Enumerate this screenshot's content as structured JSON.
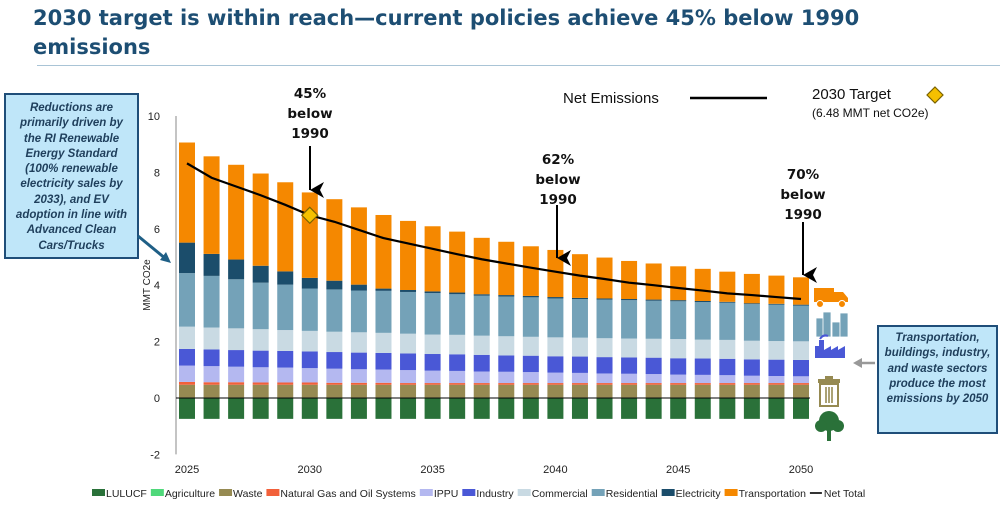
{
  "title": "2030 target is within reach—current policies achieve 45% below 1990 emissions",
  "left_callout": "Reductions are primarily driven by the RI Renewable Energy Standard (100% renewable electricity sales by 2033), and EV adoption in line with Advanced Clean Cars/Trucks",
  "right_callout": "Transportation, buildings, industry, and waste  sectors produce the most emissions by 2050",
  "annotations": [
    {
      "year": 2030,
      "pct": "45%",
      "text1": "below",
      "text2": "1990"
    },
    {
      "year": 2040,
      "pct": "62%",
      "text1": "below",
      "text2": "1990"
    },
    {
      "year": 2050,
      "pct": "70%",
      "text1": "below",
      "text2": "1990"
    }
  ],
  "top_legend": {
    "net_label": "Net Emissions",
    "target_label": "2030 Target",
    "target_sub": "(6.48 MMT net CO2e)"
  },
  "sector_icons": [
    "truck-icon",
    "buildings-icon",
    "factory-icon",
    "trash-can-icon",
    "tree-icon"
  ],
  "chart_data": {
    "type": "bar",
    "stacked": true,
    "ylabel": "MMT CO2e",
    "ylim": [
      -2,
      10
    ],
    "yticks": [
      -2,
      0,
      2,
      4,
      6,
      8,
      10
    ],
    "xtick_labels": [
      "2025",
      "2030",
      "2035",
      "2040",
      "2045",
      "2050"
    ],
    "legend_position": "bottom",
    "grid": false,
    "x": [
      2025,
      2026,
      2027,
      2028,
      2029,
      2030,
      2031,
      2032,
      2033,
      2034,
      2035,
      2036,
      2037,
      2038,
      2039,
      2040,
      2041,
      2042,
      2043,
      2044,
      2045,
      2046,
      2047,
      2048,
      2049,
      2050
    ],
    "series": [
      {
        "name": "LULUCF",
        "color": "#2a7139",
        "values": [
          -0.74,
          -0.74,
          -0.74,
          -0.74,
          -0.74,
          -0.74,
          -0.74,
          -0.74,
          -0.74,
          -0.74,
          -0.74,
          -0.74,
          -0.74,
          -0.74,
          -0.74,
          -0.74,
          -0.74,
          -0.74,
          -0.74,
          -0.74,
          -0.74,
          -0.74,
          -0.74,
          -0.74,
          -0.74,
          -0.74
        ]
      },
      {
        "name": "Agriculture",
        "color": "#4fd87a",
        "values": [
          0.02,
          0.02,
          0.02,
          0.02,
          0.02,
          0.02,
          0.02,
          0.02,
          0.02,
          0.02,
          0.02,
          0.02,
          0.02,
          0.02,
          0.02,
          0.02,
          0.02,
          0.02,
          0.02,
          0.02,
          0.02,
          0.02,
          0.02,
          0.02,
          0.02,
          0.02
        ]
      },
      {
        "name": "Waste",
        "color": "#968a52",
        "values": [
          0.45,
          0.45,
          0.45,
          0.45,
          0.45,
          0.45,
          0.45,
          0.45,
          0.45,
          0.45,
          0.45,
          0.45,
          0.45,
          0.45,
          0.45,
          0.45,
          0.45,
          0.45,
          0.45,
          0.45,
          0.45,
          0.45,
          0.45,
          0.45,
          0.45,
          0.45
        ]
      },
      {
        "name": "Natural Gas and Oil Systems",
        "color": "#f2603a",
        "values": [
          0.1,
          0.09,
          0.09,
          0.08,
          0.08,
          0.08,
          0.07,
          0.07,
          0.07,
          0.06,
          0.06,
          0.06,
          0.06,
          0.06,
          0.06,
          0.06,
          0.06,
          0.06,
          0.06,
          0.06,
          0.06,
          0.06,
          0.06,
          0.06,
          0.06,
          0.06
        ]
      },
      {
        "name": "IPPU",
        "color": "#b4b8f0",
        "values": [
          0.58,
          0.57,
          0.55,
          0.54,
          0.53,
          0.51,
          0.5,
          0.48,
          0.47,
          0.46,
          0.44,
          0.43,
          0.41,
          0.4,
          0.39,
          0.37,
          0.36,
          0.34,
          0.33,
          0.32,
          0.3,
          0.29,
          0.28,
          0.26,
          0.25,
          0.24
        ]
      },
      {
        "name": "Industry",
        "color": "#4a58d6",
        "values": [
          0.59,
          0.59,
          0.59,
          0.59,
          0.59,
          0.59,
          0.59,
          0.59,
          0.59,
          0.59,
          0.59,
          0.59,
          0.59,
          0.58,
          0.58,
          0.58,
          0.58,
          0.58,
          0.58,
          0.58,
          0.58,
          0.58,
          0.58,
          0.58,
          0.58,
          0.58
        ]
      },
      {
        "name": "Commercial",
        "color": "#c9dae3",
        "values": [
          0.79,
          0.78,
          0.77,
          0.76,
          0.74,
          0.73,
          0.72,
          0.72,
          0.71,
          0.7,
          0.69,
          0.69,
          0.68,
          0.68,
          0.67,
          0.67,
          0.67,
          0.67,
          0.67,
          0.67,
          0.68,
          0.67,
          0.67,
          0.66,
          0.66,
          0.66
        ]
      },
      {
        "name": "Residential",
        "color": "#74a2b8",
        "values": [
          1.9,
          1.83,
          1.74,
          1.65,
          1.61,
          1.5,
          1.5,
          1.48,
          1.49,
          1.48,
          1.47,
          1.44,
          1.42,
          1.41,
          1.4,
          1.38,
          1.37,
          1.37,
          1.36,
          1.35,
          1.34,
          1.33,
          1.32,
          1.3,
          1.29,
          1.27
        ]
      },
      {
        "name": "Electricity",
        "color": "#1b4d6b",
        "values": [
          1.08,
          0.78,
          0.7,
          0.6,
          0.47,
          0.38,
          0.31,
          0.21,
          0.08,
          0.07,
          0.06,
          0.06,
          0.05,
          0.05,
          0.05,
          0.05,
          0.04,
          0.04,
          0.04,
          0.04,
          0.04,
          0.04,
          0.03,
          0.03,
          0.03,
          0.03
        ]
      },
      {
        "name": "Transportation",
        "color": "#f58800",
        "values": [
          3.55,
          3.46,
          3.36,
          3.27,
          3.16,
          3.03,
          2.89,
          2.74,
          2.61,
          2.45,
          2.31,
          2.16,
          2.0,
          1.89,
          1.76,
          1.67,
          1.55,
          1.45,
          1.35,
          1.28,
          1.2,
          1.14,
          1.07,
          1.04,
          1.0,
          0.97
        ]
      }
    ],
    "line": {
      "name": "Net Total",
      "color": "#000000",
      "values": [
        8.32,
        7.81,
        7.5,
        7.19,
        6.85,
        6.48,
        6.25,
        5.96,
        5.67,
        5.48,
        5.29,
        5.1,
        4.92,
        4.77,
        4.62,
        4.48,
        4.34,
        4.22,
        4.09,
        4.0,
        3.9,
        3.81,
        3.71,
        3.65,
        3.58,
        3.51
      ]
    },
    "target_point": {
      "x": 2030,
      "y": 6.48,
      "color": "#f5c000"
    }
  }
}
